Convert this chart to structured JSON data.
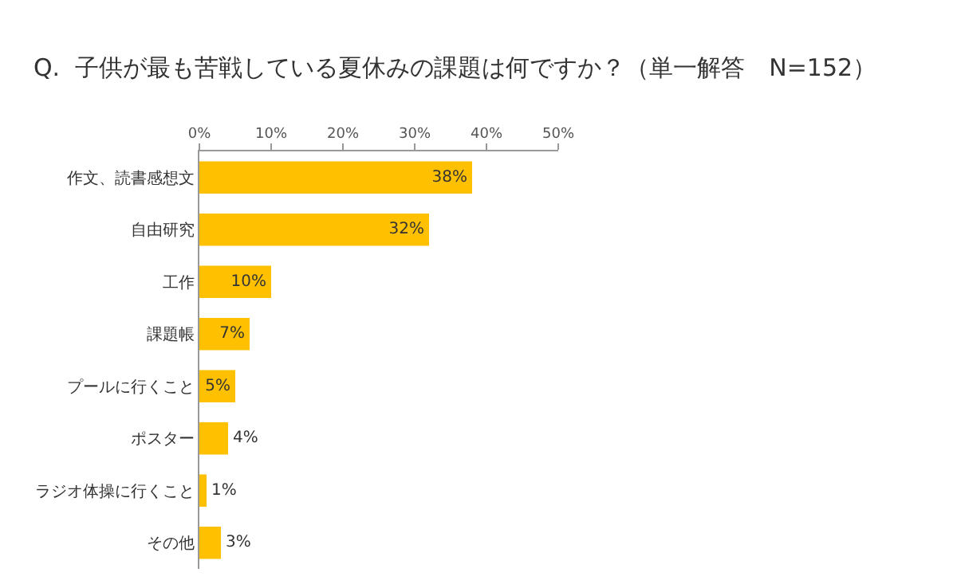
{
  "chart_data": {
    "type": "bar",
    "orientation": "horizontal",
    "title": "Q.  子供が最も苦戦している夏休みの課題は何ですか？（単一解答　N=152）",
    "categories": [
      "作文、読書感想文",
      "自由研究",
      "工作",
      "課題帳",
      "プールに行くこと",
      "ポスター",
      "ラジオ体操に行くこと",
      "その他"
    ],
    "values": [
      38,
      32,
      10,
      7,
      5,
      4,
      1,
      3
    ],
    "value_labels": [
      "38%",
      "32%",
      "10%",
      "7%",
      "5%",
      "4%",
      "1%",
      "3%"
    ],
    "color": "#ffc000",
    "xlim": [
      0,
      50
    ],
    "xticks": [
      {
        "value": 0,
        "label": "0%"
      },
      {
        "value": 10,
        "label": "10%"
      },
      {
        "value": 20,
        "label": "20%"
      },
      {
        "value": 30,
        "label": "30%"
      },
      {
        "value": 40,
        "label": "40%"
      },
      {
        "value": 50,
        "label": "50%"
      }
    ],
    "grid": false
  }
}
